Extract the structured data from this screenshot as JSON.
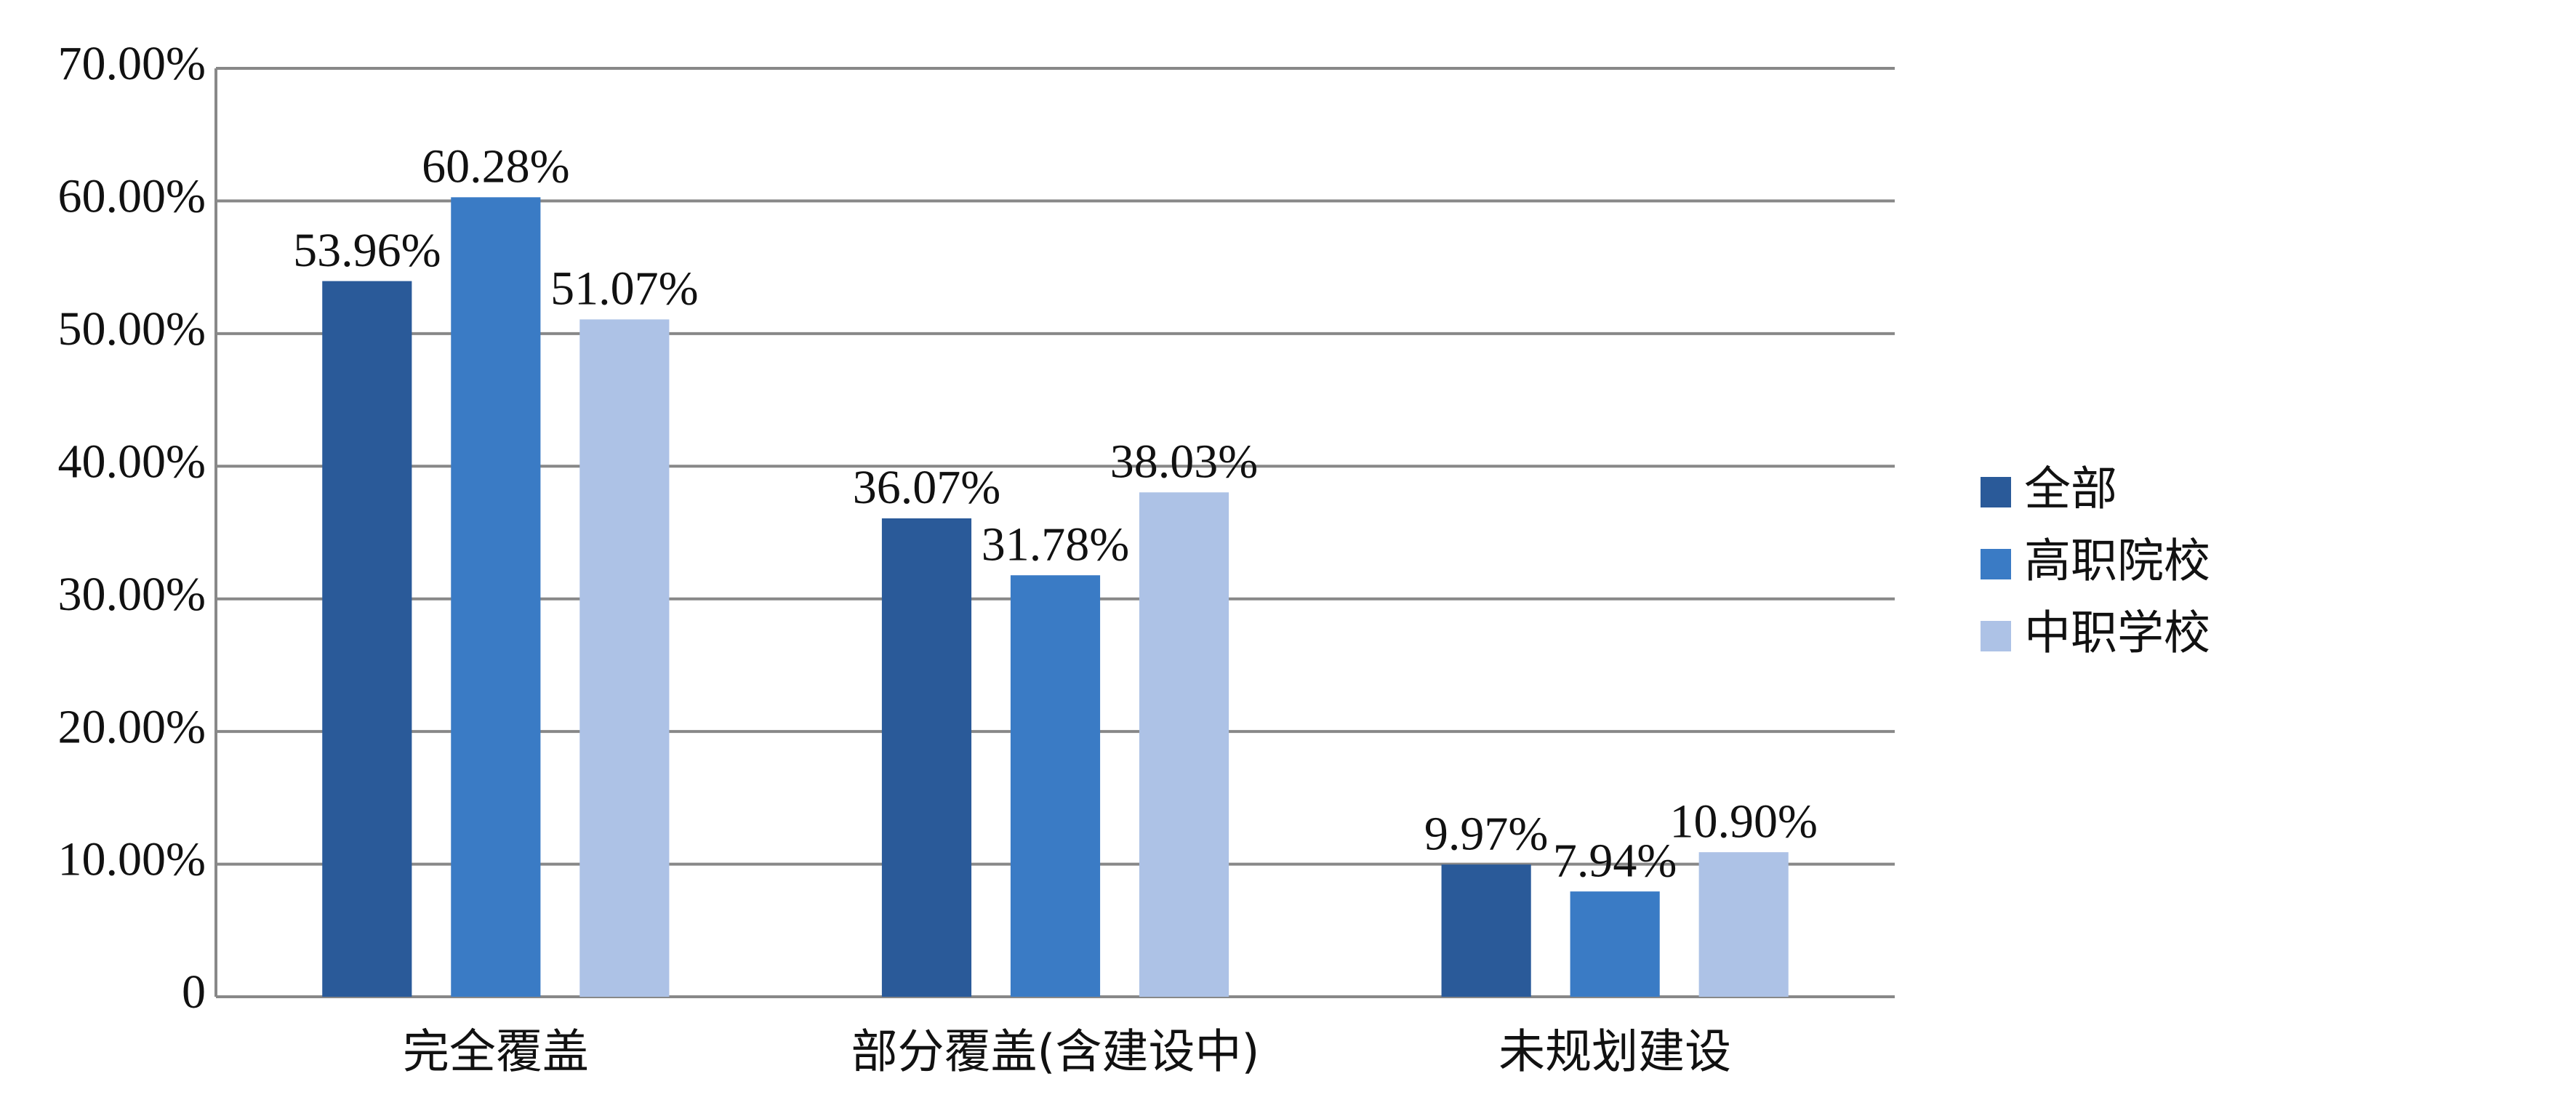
{
  "chart_data": {
    "type": "bar",
    "categories": [
      "完全覆盖",
      "部分覆盖(含建设中)",
      "未规划建设"
    ],
    "series": [
      {
        "name": "全部",
        "color": "#2a5a99",
        "values": [
          53.96,
          36.07,
          9.97
        ],
        "value_labels": [
          "53.96%",
          "36.07%",
          "9.97%"
        ]
      },
      {
        "name": "高职院校",
        "color": "#3a7bc5",
        "values": [
          60.28,
          31.78,
          7.94
        ],
        "value_labels": [
          "60.28%",
          "31.78%",
          "7.94%"
        ]
      },
      {
        "name": "中职学校",
        "color": "#adc2e6",
        "values": [
          51.07,
          38.03,
          10.9
        ],
        "value_labels": [
          "51.07%",
          "38.03%",
          "10.90%"
        ]
      }
    ],
    "ylim": [
      0,
      70
    ],
    "yticks": [
      0,
      {
        "value": 10,
        "label": "10.00%"
      },
      {
        "value": 20,
        "label": "20.00%"
      },
      {
        "value": 30,
        "label": "30.00%"
      },
      {
        "value": 40,
        "label": "40.00%"
      },
      {
        "value": 50,
        "label": "50.00%"
      },
      {
        "value": 60,
        "label": "60.00%"
      },
      {
        "value": 70,
        "label": "70.00%"
      }
    ],
    "grid": true,
    "legend": "right"
  }
}
